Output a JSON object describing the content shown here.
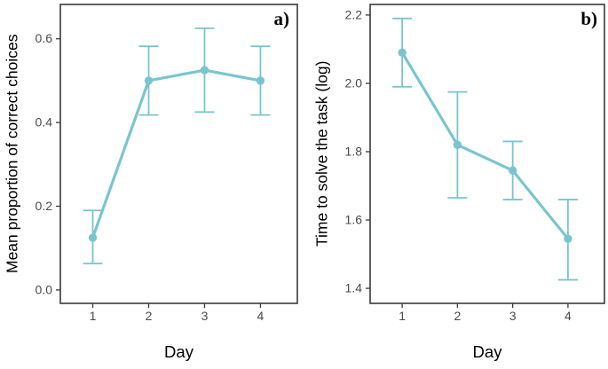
{
  "style": {
    "series_color": "#7ac5cd",
    "border_color": "#3a3a3a",
    "tick_color": "#4a4a4a",
    "text_color": "#000000",
    "background": "#ffffff"
  },
  "chart_data": [
    {
      "type": "line",
      "panel_label": "a)",
      "title": "",
      "xlabel": "Day",
      "ylabel": "Mean proportion of correct choices",
      "x": [
        1,
        2,
        3,
        4
      ],
      "xtick_labels": [
        "1",
        "2",
        "3",
        "4"
      ],
      "values": [
        0.125,
        0.5,
        0.525,
        0.5
      ],
      "error_low": [
        0.063,
        0.418,
        0.425,
        0.418
      ],
      "error_high": [
        0.19,
        0.582,
        0.625,
        0.582
      ],
      "yticks": [
        0.0,
        0.2,
        0.4,
        0.6
      ],
      "ytick_labels": [
        "0.0",
        "0.2",
        "0.4",
        "0.6"
      ],
      "ylim": [
        -0.032,
        0.682
      ],
      "xlim": [
        0.42,
        4.66
      ],
      "grid": false,
      "legend": "none",
      "error_bars": true
    },
    {
      "type": "line",
      "panel_label": "b)",
      "title": "",
      "xlabel": "Day",
      "ylabel": "Time to solve the task (log)",
      "x": [
        1,
        2,
        3,
        4
      ],
      "xtick_labels": [
        "1",
        "2",
        "3",
        "4"
      ],
      "values": [
        2.09,
        1.82,
        1.745,
        1.545
      ],
      "error_low": [
        1.99,
        1.665,
        1.66,
        1.425
      ],
      "error_high": [
        2.19,
        1.975,
        1.83,
        1.66
      ],
      "yticks": [
        1.4,
        1.6,
        1.8,
        2.0,
        2.2
      ],
      "ytick_labels": [
        "1.4",
        "1.6",
        "1.8",
        "2.0",
        "2.2"
      ],
      "ylim": [
        1.356,
        2.231
      ],
      "xlim": [
        0.42,
        4.66
      ],
      "grid": false,
      "legend": "none",
      "error_bars": true
    }
  ]
}
